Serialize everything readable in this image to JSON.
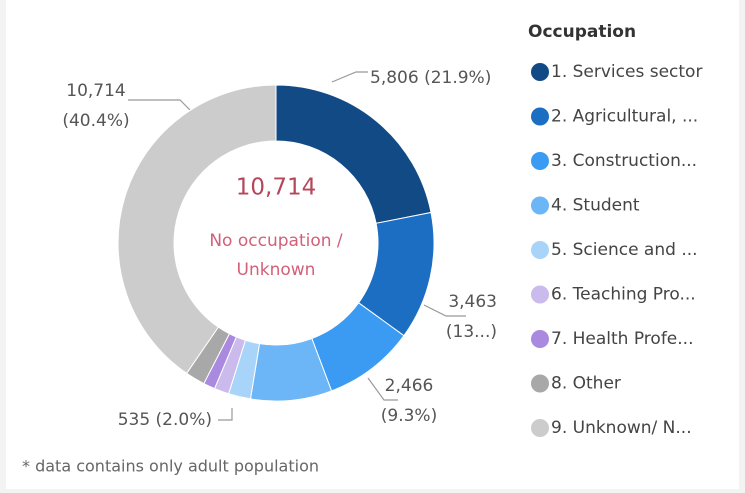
{
  "chart_data": {
    "type": "donut",
    "legend_title": "Occupation",
    "categories": [
      "1. Services sector",
      "2. Agricultural, ...",
      "3. Construction...",
      "4. Student",
      "5. Science and ...",
      "6. Teaching Pro...",
      "7. Health Profe...",
      "8. Other",
      "9. Unknown/ N..."
    ],
    "values": [
      5806,
      3463,
      2466,
      2200,
      600,
      400,
      316,
      535,
      10714
    ],
    "value_labels": [
      "5,806 (21.9%)",
      "3,463 (13...)",
      "2,466 (9.3%)",
      null,
      null,
      null,
      null,
      "535 (2.0%)",
      "10,714 (40.4%)"
    ],
    "colors": [
      "#124a85",
      "#1b6ec2",
      "#3b9bf2",
      "#6cb5f6",
      "#a9d4fa",
      "#cbbaec",
      "#a98ade",
      "#a8a8a8",
      "#cccccc"
    ],
    "center_value": "10,714",
    "center_label": "No occupation / Unknown",
    "footnote": "* data contains only adult population",
    "legend": "right"
  }
}
